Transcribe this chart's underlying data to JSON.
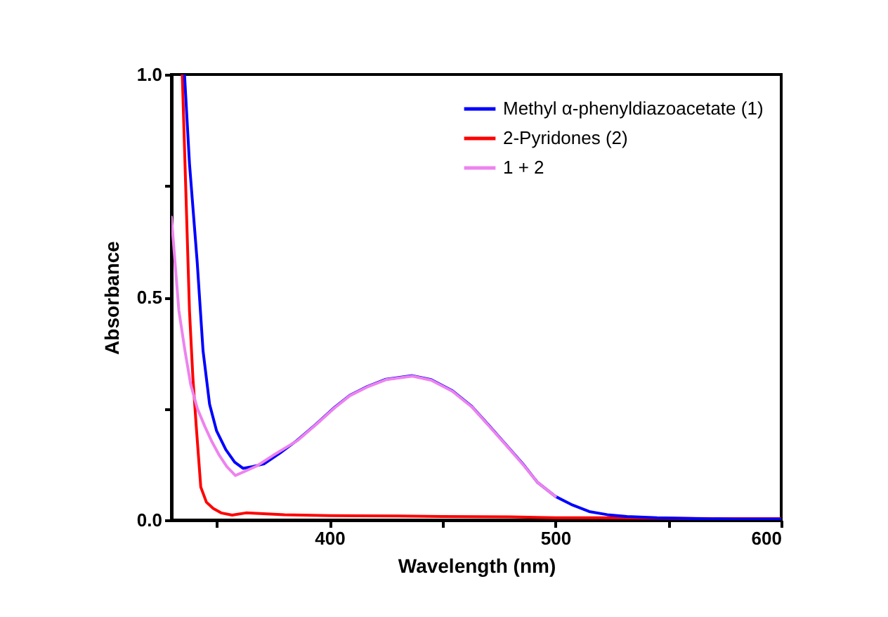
{
  "chart_data": {
    "type": "line",
    "xlabel": "Wavelength (nm)",
    "ylabel": "Absorbance",
    "xlim": [
      330,
      600
    ],
    "ylim": [
      0,
      1
    ],
    "xticks": [
      {
        "value": 350,
        "label": null
      },
      400,
      {
        "value": 450,
        "label": null
      },
      500,
      {
        "value": 550,
        "label": null
      },
      600
    ],
    "yticks": [
      {
        "value": 0,
        "label": "0.0"
      },
      {
        "value": 0.25,
        "label": null
      },
      0.5,
      {
        "value": 0.75,
        "label": null
      },
      {
        "value": 1,
        "label": "1.0"
      }
    ],
    "grid": false,
    "legend": "top right",
    "line_style": "solid",
    "marker": "none",
    "series": [
      {
        "name": "Methyl α-phenyldiazoacetate (1)",
        "color": "#0000ff",
        "x": [
          335.8,
          338,
          341.4,
          344,
          346.9,
          350,
          354.1,
          358,
          361.7,
          366,
          371,
          378,
          385.7,
          394,
          402.3,
          409,
          416.9,
          425,
          436.7,
          445,
          454.4,
          463,
          471,
          478,
          485.6,
          492,
          500,
          507,
          515,
          523,
          531.7,
          545,
          563,
          580,
          600
        ],
        "values": [
          1.0,
          0.8,
          0.58,
          0.38,
          0.26,
          0.2,
          0.158,
          0.13,
          0.116,
          0.12,
          0.126,
          0.15,
          0.179,
          0.215,
          0.253,
          0.28,
          0.3,
          0.316,
          0.324,
          0.315,
          0.29,
          0.255,
          0.21,
          0.17,
          0.126,
          0.085,
          0.053,
          0.035,
          0.019,
          0.012,
          0.008,
          0.005,
          0.003,
          0.002,
          0.002
        ]
      },
      {
        "name": "2-Pyridones (2)",
        "color": "#ff0000",
        "x": [
          334.8,
          336.5,
          338,
          339.5,
          341,
          343,
          345.5,
          348.5,
          352,
          356.9,
          363,
          380,
          400,
          430,
          450,
          480,
          500,
          520,
          550,
          580,
          600
        ],
        "values": [
          1.0,
          0.72,
          0.47,
          0.32,
          0.21,
          0.074,
          0.04,
          0.026,
          0.016,
          0.011,
          0.016,
          0.012,
          0.01,
          0.009,
          0.008,
          0.007,
          0.005,
          0.005,
          0.004,
          0.003,
          0.003
        ]
      },
      {
        "name": "1 + 2",
        "color": "#ee82ee",
        "x": [
          330,
          333.3,
          336,
          338.5,
          341.5,
          344.8,
          348,
          351,
          354.5,
          358.3,
          362,
          367.7,
          375,
          385.7,
          394,
          402.3,
          409,
          416.9,
          425,
          436.7,
          445,
          454.4,
          463,
          471,
          478,
          485.6,
          492,
          500
        ],
        "values": [
          0.68,
          0.47,
          0.38,
          0.305,
          0.25,
          0.21,
          0.175,
          0.147,
          0.12,
          0.1,
          0.108,
          0.121,
          0.145,
          0.178,
          0.214,
          0.252,
          0.279,
          0.299,
          0.315,
          0.323,
          0.314,
          0.289,
          0.254,
          0.209,
          0.169,
          0.125,
          0.085,
          0.053
        ]
      }
    ]
  }
}
